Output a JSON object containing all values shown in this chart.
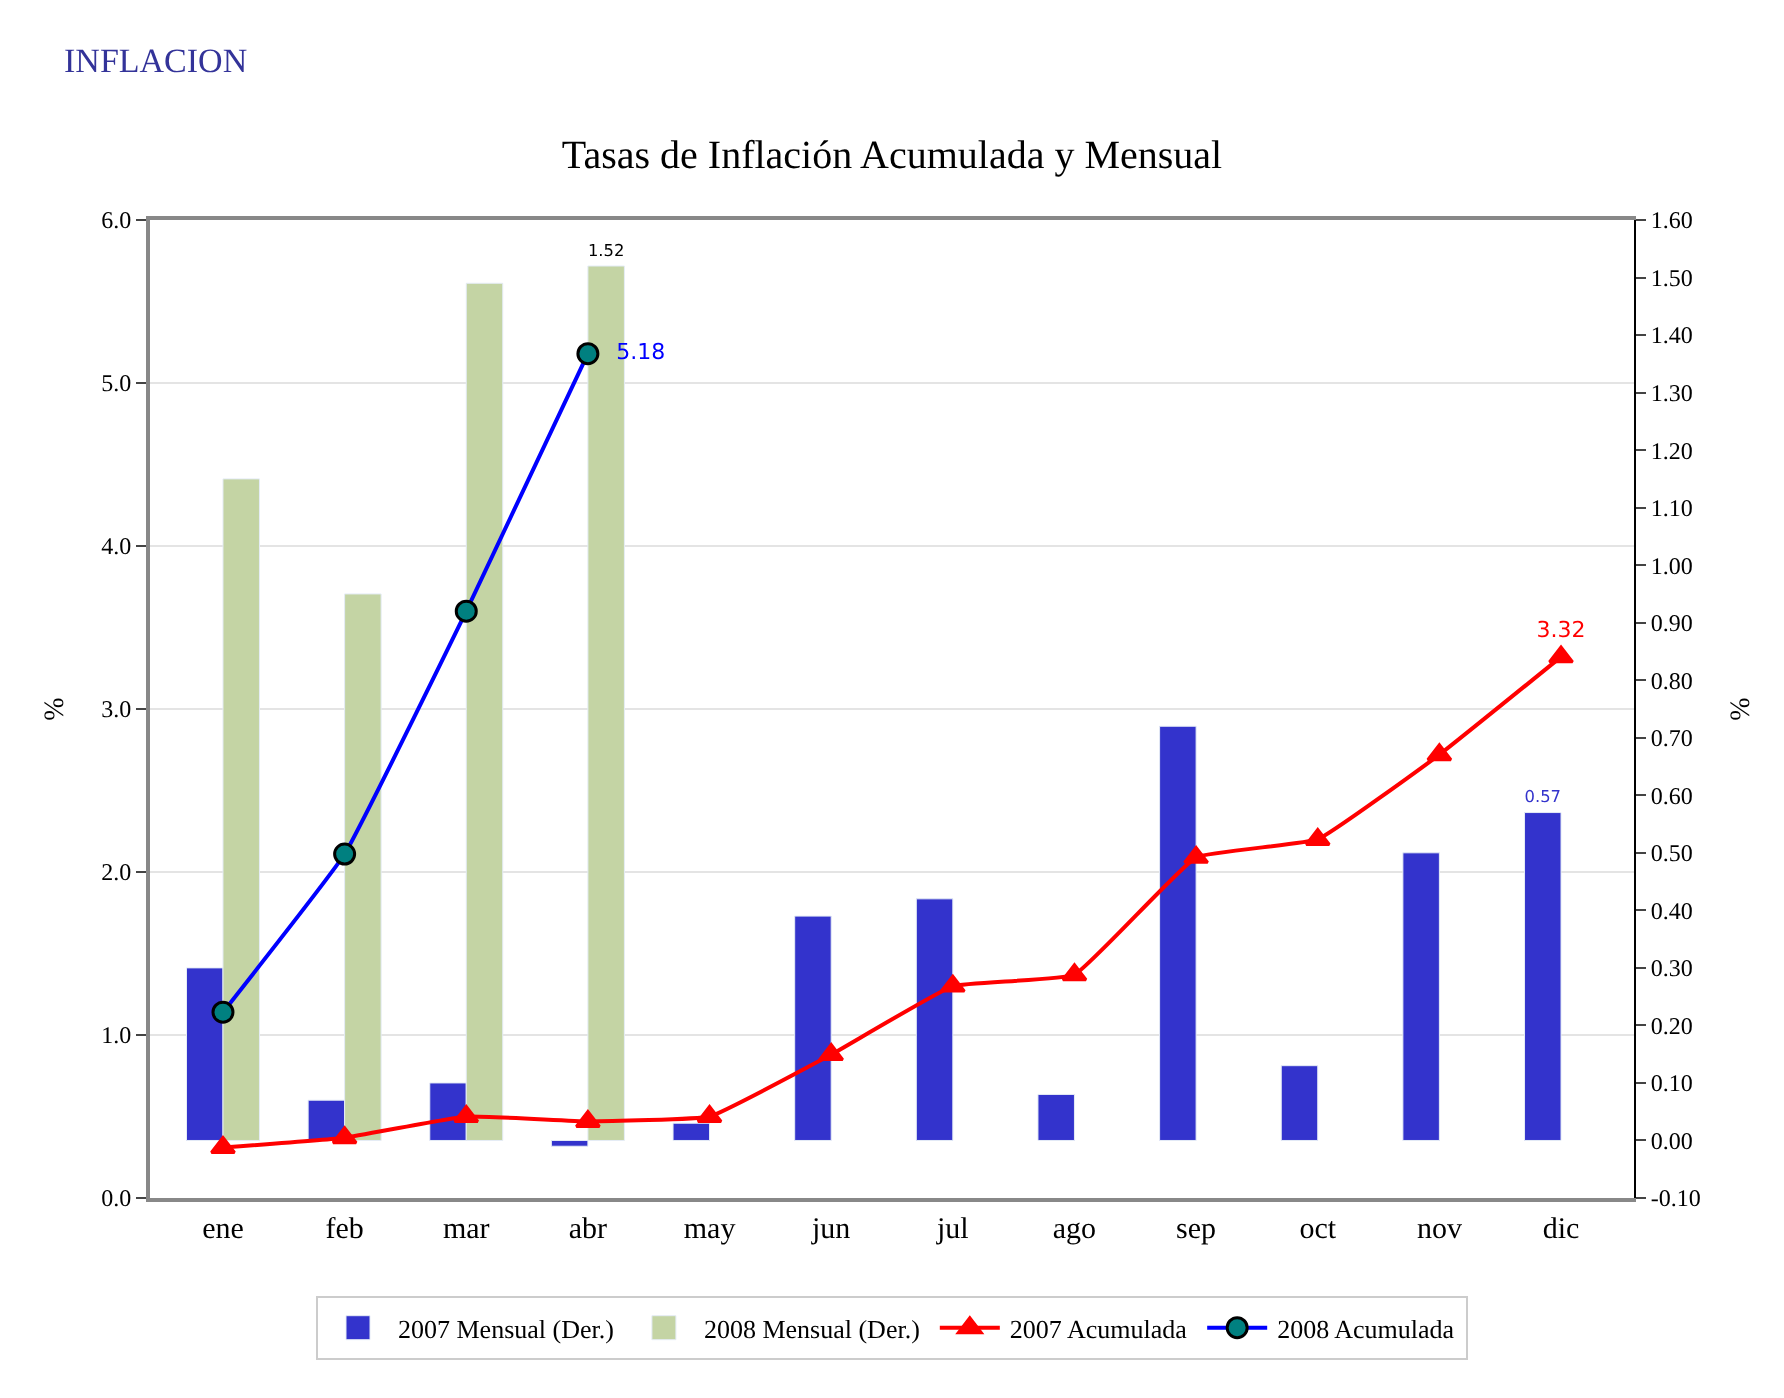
{
  "chart_data": {
    "type": "bar",
    "title": "Tasas de Inflación Acumulada y Mensual",
    "subtitle": "INFLACION",
    "ylabel": "%",
    "y2label": "%",
    "categories": [
      "ene",
      "feb",
      "mar",
      "abr",
      "may",
      "jun",
      "jul",
      "ago",
      "sep",
      "oct",
      "nov",
      "dic"
    ],
    "series": [
      {
        "name": "2007 Mensual (Der.)",
        "axis": "y2",
        "color": "#3333cc",
        "values": [
          0.3,
          0.07,
          0.1,
          -0.01,
          0.03,
          0.39,
          0.42,
          0.08,
          0.72,
          0.13,
          0.5,
          0.57
        ],
        "value_labels": [
          null,
          null,
          null,
          null,
          null,
          null,
          null,
          null,
          null,
          null,
          null,
          "0.57"
        ]
      },
      {
        "name": "2008 Mensual (Der.)",
        "axis": "y2",
        "color": "#c4d4a4",
        "values": [
          1.15,
          0.95,
          1.49,
          1.52,
          null,
          null,
          null,
          null,
          null,
          null,
          null,
          null
        ],
        "value_labels": [
          null,
          null,
          null,
          "1.52",
          null,
          null,
          null,
          null,
          null,
          null,
          null,
          null
        ]
      },
      {
        "name": "2007 Acumulada",
        "type": "line",
        "color": "#ff0000",
        "marker": "triangle",
        "values": [
          0.31,
          0.37,
          0.5,
          0.47,
          0.5,
          0.88,
          1.3,
          1.37,
          2.09,
          2.2,
          2.72,
          3.32
        ],
        "value_labels": [
          null,
          null,
          null,
          null,
          null,
          null,
          null,
          null,
          null,
          null,
          null,
          "3.32"
        ]
      },
      {
        "name": "2008 Acumulada",
        "type": "line",
        "color": "#0000ff",
        "marker": "circle",
        "values": [
          1.14,
          2.11,
          3.6,
          5.18,
          null,
          null,
          null,
          null,
          null,
          null,
          null,
          null
        ],
        "value_labels": [
          null,
          null,
          null,
          "5.18",
          null,
          null,
          null,
          null,
          null,
          null,
          null,
          null
        ]
      }
    ],
    "ylim": [
      0,
      6
    ],
    "yticks": [
      {
        "value": 0,
        "label": "0.0"
      },
      {
        "value": 1,
        "label": "1.0"
      },
      {
        "value": 2,
        "label": "2.0"
      },
      {
        "value": 3,
        "label": "3.0"
      },
      {
        "value": 4,
        "label": "4.0"
      },
      {
        "value": 5,
        "label": "5.0"
      },
      {
        "value": 6,
        "label": "6.0"
      }
    ],
    "y2lim": [
      -0.1,
      1.6
    ],
    "y2ticks": [
      {
        "value": -0.1,
        "label": "-0.10"
      },
      {
        "value": 0,
        "label": "0.00"
      },
      {
        "value": 0.1,
        "label": "0.10"
      },
      {
        "value": 0.2,
        "label": "0.20"
      },
      {
        "value": 0.3,
        "label": "0.30"
      },
      {
        "value": 0.4,
        "label": "0.40"
      },
      {
        "value": 0.5,
        "label": "0.50"
      },
      {
        "value": 0.6,
        "label": "0.60"
      },
      {
        "value": 0.7,
        "label": "0.70"
      },
      {
        "value": 0.8,
        "label": "0.80"
      },
      {
        "value": 0.9,
        "label": "0.90"
      },
      {
        "value": 1.0,
        "label": "1.00"
      },
      {
        "value": 1.1,
        "label": "1.10"
      },
      {
        "value": 1.2,
        "label": "1.20"
      },
      {
        "value": 1.3,
        "label": "1.30"
      },
      {
        "value": 1.4,
        "label": "1.40"
      },
      {
        "value": 1.5,
        "label": "1.50"
      },
      {
        "value": 1.6,
        "label": "1.60"
      }
    ],
    "grid": "y",
    "legend": "bottom"
  }
}
